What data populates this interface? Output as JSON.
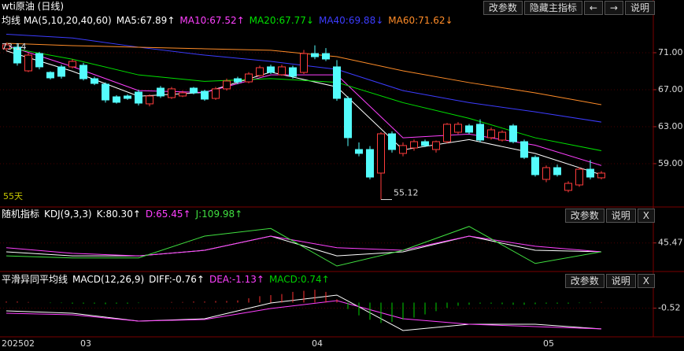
{
  "chart_data": [
    {
      "type": "candlestick",
      "title": "wti原油 (日线)",
      "indicator": "均线 MA(5,10,20,40,60)",
      "buttons": [
        "改参数",
        "隐藏主指标",
        "←",
        "→",
        "说明"
      ],
      "period_label": "55天",
      "max_label": "73.14",
      "categories": [
        "202502",
        null,
        null,
        null,
        null,
        null,
        null,
        "03",
        null,
        null,
        null,
        null,
        null,
        null,
        null,
        null,
        null,
        null,
        null,
        null,
        null,
        null,
        null,
        null,
        null,
        null,
        null,
        null,
        "04",
        null,
        null,
        null,
        null,
        null,
        null,
        null,
        null,
        null,
        null,
        null,
        null,
        null,
        null,
        null,
        null,
        null,
        null,
        null,
        null,
        "05",
        null,
        null,
        null,
        null,
        null
      ],
      "open": [
        71.43,
        71.6,
        69.04,
        70.91,
        68.87,
        69.47,
        69.47,
        69.64,
        68.19,
        67.6,
        66.23,
        66.32,
        66.74,
        65.47,
        67.17,
        66.15,
        66.32,
        67.17,
        66.83,
        66.06,
        67.09,
        68.19,
        67.85,
        68.53,
        69.47,
        68.62,
        69.38,
        68.87,
        70.91,
        70.91,
        69.47,
        66.06,
        60.53,
        60.53,
        57.98,
        62.23,
        60.11,
        60.7,
        61.38,
        60.53,
        61.38,
        62.4,
        63.09,
        63.26,
        61.81,
        61.55,
        63.09,
        61.38,
        59.68,
        57.3,
        58.57,
        56.11,
        56.7,
        58.4,
        57.47
      ],
      "high": [
        72.1,
        71.9,
        71.0,
        71.1,
        69.0,
        69.7,
        70.3,
        69.9,
        68.4,
        67.8,
        66.4,
        66.5,
        67.0,
        66.5,
        67.4,
        67.3,
        66.9,
        67.3,
        67.0,
        67.3,
        68.2,
        68.4,
        68.9,
        69.6,
        69.7,
        69.7,
        69.6,
        71.3,
        71.8,
        71.5,
        70.2,
        66.3,
        61.3,
        60.9,
        62.4,
        62.5,
        61.3,
        61.6,
        61.6,
        61.5,
        63.4,
        63.5,
        63.3,
        63.8,
        62.9,
        62.6,
        63.3,
        61.6,
        59.9,
        58.8,
        58.9,
        57.1,
        58.6,
        59.4,
        58.2
      ],
      "low": [
        71.2,
        69.6,
        68.9,
        69.2,
        68.1,
        68.2,
        69.3,
        68.0,
        67.5,
        65.6,
        65.5,
        65.9,
        65.3,
        65.2,
        66.1,
        66.0,
        66.2,
        66.5,
        65.8,
        65.9,
        66.9,
        67.6,
        67.7,
        68.4,
        68.7,
        68.5,
        68.2,
        68.7,
        70.3,
        70.1,
        65.8,
        60.9,
        59.8,
        57.3,
        55.12,
        60.2,
        59.8,
        60.4,
        60.8,
        60.2,
        61.2,
        62.2,
        62.2,
        61.3,
        61.6,
        61.4,
        61.2,
        59.5,
        57.6,
        57.0,
        57.6,
        55.9,
        56.5,
        57.3,
        57.3
      ],
      "close": [
        71.85,
        69.89,
        70.74,
        69.47,
        68.28,
        68.45,
        70.06,
        68.19,
        67.68,
        65.89,
        65.64,
        66.06,
        65.55,
        66.32,
        66.32,
        67.09,
        66.66,
        66.66,
        65.98,
        67.09,
        67.94,
        67.85,
        68.7,
        69.38,
        68.87,
        69.47,
        68.45,
        70.91,
        70.57,
        70.32,
        66.06,
        61.81,
        60.11,
        57.55,
        62.23,
        60.53,
        60.96,
        61.38,
        60.96,
        61.38,
        63.26,
        63.26,
        62.4,
        61.55,
        62.66,
        62.4,
        61.38,
        59.68,
        57.81,
        58.57,
        57.81,
        56.87,
        58.4,
        57.55,
        57.98
      ],
      "up_color": "#ff3c3c",
      "down_color": "#54fcfc",
      "series": [
        {
          "name": "MA5:67.89↑",
          "color": "#ffffff",
          "x": [
            0,
            6,
            12,
            18,
            24,
            30,
            36,
            42,
            48,
            54
          ],
          "values": [
            71.2,
            69.0,
            66.3,
            66.7,
            68.9,
            67.3,
            60.5,
            61.6,
            60.1,
            57.8
          ]
        },
        {
          "name": "MA10:67.52↑",
          "color": "#ff40ff",
          "x": [
            0,
            6,
            12,
            18,
            24,
            30,
            36,
            42,
            48,
            54
          ],
          "values": [
            71.8,
            69.5,
            66.9,
            66.7,
            68.6,
            68.6,
            61.8,
            62.2,
            61.0,
            58.8
          ]
        },
        {
          "name": "MA20:67.77↓",
          "color": "#00e000",
          "x": [
            0,
            6,
            12,
            18,
            24,
            30,
            36,
            42,
            48,
            54
          ],
          "values": [
            71.6,
            70.3,
            68.6,
            67.9,
            68.2,
            67.8,
            65.6,
            63.9,
            61.8,
            60.4
          ]
        },
        {
          "name": "MA40:69.88↓",
          "color": "#3c3cff",
          "x": [
            0,
            6,
            12,
            18,
            24,
            30,
            36,
            42,
            48,
            54
          ],
          "values": [
            73.0,
            72.6,
            71.6,
            70.74,
            70.06,
            69.2,
            66.9,
            65.6,
            64.6,
            63.5
          ]
        },
        {
          "name": "MA60:71.62↓",
          "color": "#ff8c28",
          "x": [
            0,
            6,
            12,
            18,
            24,
            30,
            36,
            42,
            48,
            54
          ],
          "values": [
            72.02,
            71.77,
            71.6,
            71.43,
            71.26,
            70.57,
            69.04,
            67.77,
            66.66,
            65.38
          ]
        }
      ],
      "ylim": [
        54.4,
        75
      ],
      "yticks": [
        {
          "value": 71,
          "label": "71.00"
        },
        {
          "value": 67,
          "label": "67.00"
        },
        {
          "value": 63,
          "label": "63.00"
        },
        {
          "value": 59,
          "label": "59.00"
        }
      ],
      "grid": true
    },
    {
      "type": "kdj",
      "title": "随机指标",
      "indicator": "KDJ(9,3,3)",
      "buttons": [
        "改参数",
        "说明",
        "X"
      ],
      "series": [
        {
          "name": "K:80.30↑",
          "color": "#ffffff",
          "x": [
            0,
            6,
            12,
            18,
            24,
            30,
            36,
            42,
            48,
            54
          ],
          "values": [
            28,
            20,
            20,
            31,
            59,
            20,
            28,
            59,
            31,
            28
          ]
        },
        {
          "name": "D:65.45↑",
          "color": "#ff40ff",
          "x": [
            0,
            6,
            12,
            18,
            24,
            30,
            36,
            42,
            48,
            54
          ],
          "values": [
            36,
            25,
            20,
            31,
            59,
            36,
            31,
            59,
            39,
            28
          ]
        },
        {
          "name": "J:109.98↑",
          "color": "#40e040",
          "x": [
            0,
            6,
            12,
            18,
            24,
            30,
            36,
            42,
            48,
            54
          ],
          "values": [
            20,
            16,
            16,
            59,
            74,
            0,
            31,
            78,
            5,
            28
          ]
        }
      ],
      "ylim": [
        0,
        90
      ],
      "yticks": [
        45.47
      ],
      "grid": true
    },
    {
      "type": "macd",
      "title": "平滑异同平均线",
      "indicator": "MACD(12,26,9)",
      "buttons": [
        "改参数",
        "说明",
        "X"
      ],
      "series": [
        {
          "name": "DIFF:-0.76↑",
          "color": "#ffffff",
          "x": [
            0,
            6,
            12,
            18,
            24,
            30,
            36,
            42,
            48,
            54
          ],
          "values": [
            -0.77,
            -0.99,
            -1.73,
            -1.51,
            -0.04,
            0.7,
            -2.61,
            -2.02,
            -2.02,
            -2.46
          ]
        },
        {
          "name": "DEA:-1.13↑",
          "color": "#ff40ff",
          "x": [
            0,
            6,
            12,
            18,
            24,
            30,
            36,
            42,
            48,
            54
          ],
          "values": [
            -0.99,
            -1.14,
            -1.73,
            -1.58,
            -0.55,
            0.18,
            -1.51,
            -2.02,
            -2.24,
            -2.46
          ]
        },
        {
          "name": "MACD:0.74↑",
          "color": "#00d000",
          "up_color": "#ff3232",
          "values": [
            0.1,
            0.1,
            0.05,
            0,
            -0.05,
            -0.05,
            -0.1,
            -0.1,
            -0.1,
            -0.15,
            -0.1,
            -0.1,
            -0.05,
            0,
            0,
            0.05,
            0.05,
            0.1,
            0.1,
            0.15,
            0.15,
            0.2,
            0.4,
            0.6,
            0.7,
            0.8,
            1.0,
            1.1,
            1.2,
            1.0,
            0.3,
            -0.6,
            -1.2,
            -1.6,
            -1.9,
            -1.8,
            -1.6,
            -1.4,
            -1.1,
            -0.8,
            -0.5,
            -0.3,
            -0.2,
            -0.1,
            -0.1,
            -0.15,
            -0.2,
            -0.2,
            -0.15,
            -0.1,
            -0.1,
            -0.1,
            -0.05,
            -0.05,
            0.05
          ]
        }
      ],
      "ylim": [
        -3.2,
        1.8
      ],
      "yticks": [
        -0.52
      ],
      "grid": true
    }
  ]
}
